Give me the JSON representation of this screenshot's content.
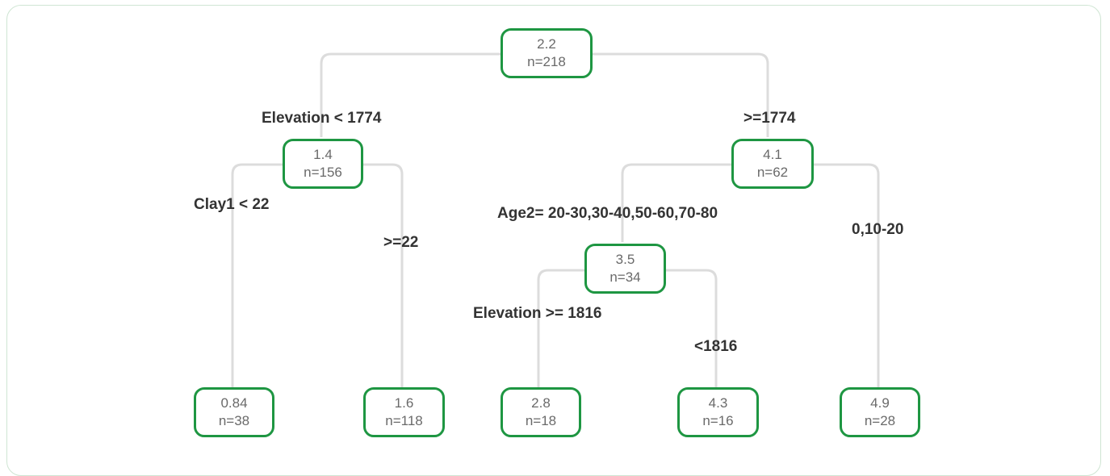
{
  "tree": {
    "nodes": [
      {
        "id": "root",
        "value": "2.2",
        "n": "n=218"
      },
      {
        "id": "left",
        "value": "1.4",
        "n": "n=156"
      },
      {
        "id": "right",
        "value": "4.1",
        "n": "n=62"
      },
      {
        "id": "right-left",
        "value": "3.5",
        "n": "n=34"
      },
      {
        "id": "leaf-1",
        "value": "0.84",
        "n": "n=38"
      },
      {
        "id": "leaf-2",
        "value": "1.6",
        "n": "n=118"
      },
      {
        "id": "leaf-3",
        "value": "2.8",
        "n": "n=18"
      },
      {
        "id": "leaf-4",
        "value": "4.3",
        "n": "n=16"
      },
      {
        "id": "leaf-5",
        "value": "4.9",
        "n": "n=28"
      }
    ],
    "splits": [
      {
        "id": "split-elevation-lt-1774",
        "text": "Elevation < 1774"
      },
      {
        "id": "split-ge-1774",
        "text": ">=1774"
      },
      {
        "id": "split-clay1-lt-22",
        "text": "Clay1 < 22"
      },
      {
        "id": "split-ge-22",
        "text": ">=22"
      },
      {
        "id": "split-age2",
        "text": "Age2= 20-30,30-40,50-60,70-80"
      },
      {
        "id": "split-age-other",
        "text": "0,10-20"
      },
      {
        "id": "split-elevation-ge-1816",
        "text": "Elevation >= 1816"
      },
      {
        "id": "split-lt-1816",
        "text": "<1816"
      }
    ]
  },
  "colors": {
    "node_border": "#1e9642",
    "edge": "#dcdcdc",
    "node_text": "#6a6a6a",
    "label_text": "#333333"
  }
}
